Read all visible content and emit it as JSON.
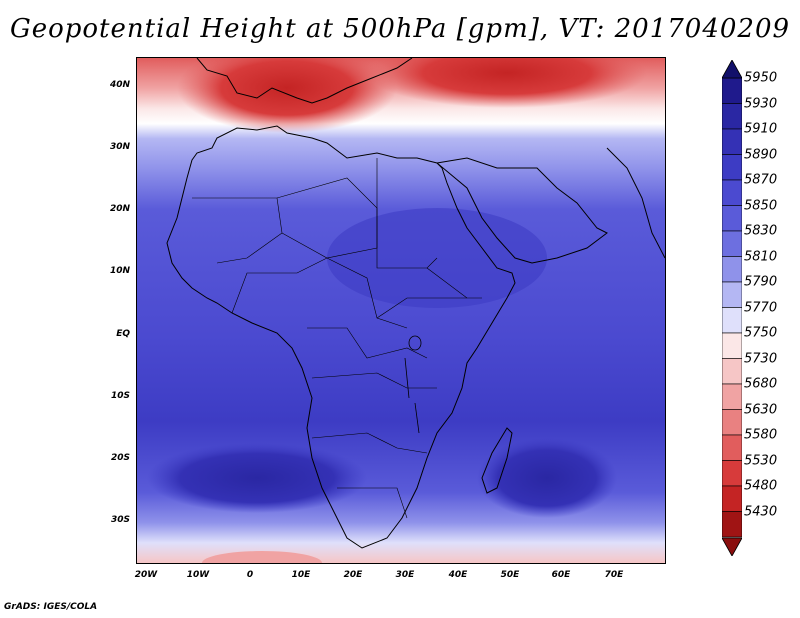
{
  "title": "Geopotential Height at 500hPa [gpm], VT: 2017040209",
  "credit": "GrADS: IGES/COLA",
  "lat_labels": [
    "40N",
    "30N",
    "20N",
    "10N",
    "EQ",
    "10S",
    "20S",
    "30S"
  ],
  "lon_labels": [
    "20W",
    "10W",
    "0",
    "10E",
    "20E",
    "30E",
    "40E",
    "50E",
    "60E",
    "70E"
  ],
  "colorbar": {
    "levels": [
      "5950",
      "5930",
      "5910",
      "5890",
      "5870",
      "5850",
      "5830",
      "5810",
      "5790",
      "5770",
      "5750",
      "5730",
      "5680",
      "5630",
      "5580",
      "5530",
      "5480",
      "5430"
    ],
    "colors": [
      "#1f1a8c",
      "#2a27a3",
      "#3431b5",
      "#3d3cc4",
      "#4b4ad0",
      "#5a5bd9",
      "#6d6fe0",
      "#8f92ea",
      "#b4b7f3",
      "#dfe0fb",
      "#fbe7e7",
      "#f6c6c6",
      "#f0a3a3",
      "#e98181",
      "#e15d5d",
      "#d73b3b",
      "#c42424",
      "#a01414"
    ],
    "max_arrow_color": "#12106a",
    "min_arrow_color": "#8a0e0e"
  },
  "map_colors": {
    "low_blue": "#5a5bd9",
    "mid_blue": "#3d3cc4",
    "deep_blue": "#2a27a3",
    "pale": "#dfe0fb",
    "white": "#ffffff",
    "pink": "#f0a3a3",
    "red": "#d73b3b",
    "dark_red": "#c42424"
  }
}
